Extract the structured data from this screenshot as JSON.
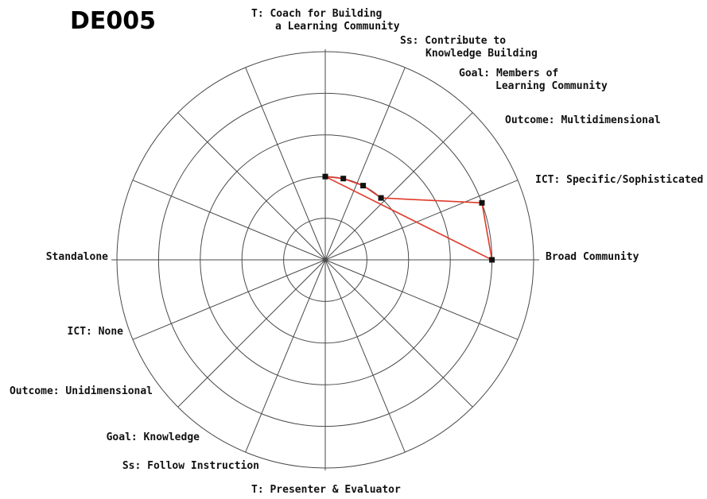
{
  "chart_data": {
    "type": "radar",
    "title": "DE005",
    "r_range": [
      0,
      5
    ],
    "rings": 5,
    "grid": true,
    "labels": {
      "top": [
        "T: Coach for Building",
        "a Learning Community"
      ],
      "bottom": "T: Presenter & Evaluator",
      "right": "Broad Community",
      "left": "Standalone",
      "right_side": [
        [
          "ICT: Specific/Sophisticated"
        ],
        [
          "Outcome: Multidimensional"
        ],
        [
          "Goal: Members of",
          "Learning Community"
        ],
        [
          "Ss: Contribute to",
          "Knowledge Building"
        ]
      ],
      "left_side": [
        [
          "ICT: None"
        ],
        [
          "Outcome: Unidimensional"
        ],
        [
          "Goal: Knowledge"
        ],
        [
          "Ss: Follow Instruction"
        ]
      ]
    },
    "series": [
      {
        "color": "#e03a2a",
        "points": [
          {
            "angle_deg": 90,
            "r": 2.0
          },
          {
            "angle_deg": 77.5,
            "r": 2.0
          },
          {
            "angle_deg": 63,
            "r": 2.0
          },
          {
            "angle_deg": 48,
            "r": 2.0
          },
          {
            "angle_deg": 20,
            "r": 4.0
          },
          {
            "angle_deg": 0,
            "r": 4.0
          }
        ]
      }
    ]
  }
}
